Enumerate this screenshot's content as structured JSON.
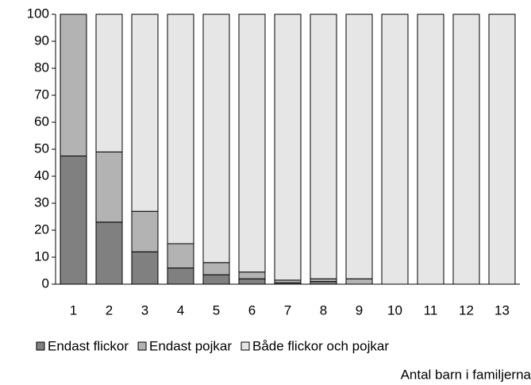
{
  "chart_data": {
    "type": "stacked-bar",
    "categories": [
      "1",
      "2",
      "3",
      "4",
      "5",
      "6",
      "7",
      "8",
      "9",
      "10",
      "11",
      "12",
      "13"
    ],
    "series": [
      {
        "name": "Endast flickor",
        "color": "#808080",
        "values": [
          47.5,
          23,
          12,
          6,
          3.5,
          2,
          0.5,
          1,
          0,
          0,
          0,
          0,
          0
        ]
      },
      {
        "name": "Endast pojkar",
        "color": "#b3b3b3",
        "values": [
          52.5,
          26,
          15,
          9,
          4.5,
          2.5,
          1,
          1,
          2,
          0,
          0,
          0,
          0
        ]
      },
      {
        "name": "Både flickor och pojkar",
        "color": "#e6e6e6",
        "values": [
          0,
          51,
          73,
          85,
          92,
          95.5,
          98.5,
          98,
          98,
          100,
          100,
          100,
          100
        ]
      }
    ],
    "ylim": [
      0,
      100
    ],
    "yticks": [
      0,
      10,
      20,
      30,
      40,
      50,
      60,
      70,
      80,
      90,
      100
    ],
    "xlabel": "Antal barn i familjerna",
    "grid": false
  }
}
